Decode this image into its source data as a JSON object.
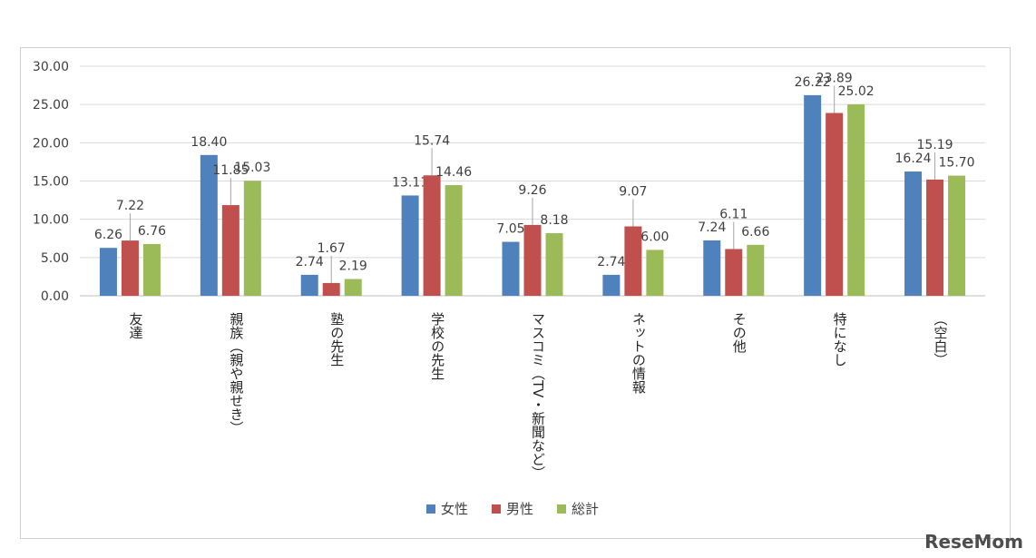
{
  "chart_data": {
    "type": "bar",
    "title": "",
    "xlabel": "",
    "ylabel": "",
    "ylim": [
      0,
      30
    ],
    "yticks": [
      "0.00",
      "5.00",
      "10.00",
      "15.00",
      "20.00",
      "25.00",
      "30.00"
    ],
    "grid": true,
    "legend_position": "bottom",
    "categories": [
      "友達",
      "親族（親や親せき）",
      "塾の先生",
      "学校の先生",
      "マスコミ（TV・新聞など）",
      "ネットの情報",
      "その他",
      "特になし",
      "（空白）"
    ],
    "series": [
      {
        "name": "女性",
        "color": "#4f81bd",
        "values": [
          6.26,
          18.4,
          2.74,
          13.11,
          7.05,
          2.74,
          7.24,
          26.22,
          16.24
        ]
      },
      {
        "name": "男性",
        "color": "#c0504d",
        "values": [
          7.22,
          11.85,
          1.67,
          15.74,
          9.26,
          9.07,
          6.11,
          23.89,
          15.19
        ]
      },
      {
        "name": "総計",
        "color": "#9bbb59",
        "values": [
          6.76,
          15.03,
          2.19,
          14.46,
          8.18,
          6.0,
          6.66,
          25.02,
          15.7
        ]
      }
    ]
  },
  "watermark": "ReseMom"
}
